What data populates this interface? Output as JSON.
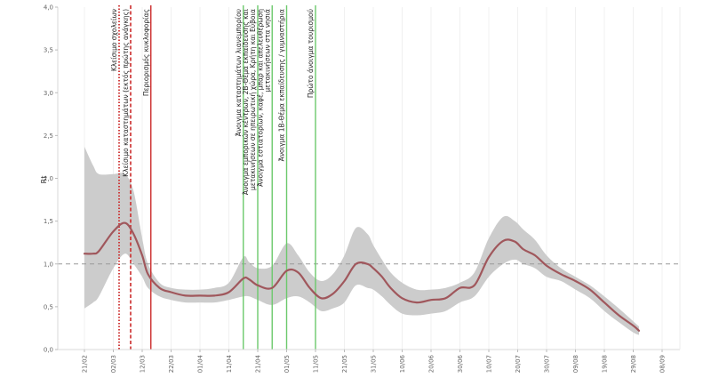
{
  "chart_data": {
    "type": "line",
    "title": "",
    "xlabel": "",
    "ylabel": "Rt",
    "x_ticks": [
      "21/02",
      "02/03",
      "12/03",
      "22/03",
      "01/04",
      "11/04",
      "21/04",
      "01/05",
      "11/05",
      "21/05",
      "31/05",
      "10/06",
      "20/06",
      "30/06",
      "10/07",
      "20/07",
      "30/07",
      "09/08",
      "19/08",
      "29/08",
      "08/09"
    ],
    "y_ticks": [
      "0,0",
      "0,5",
      "1,0",
      "1,5",
      "2,0",
      "2,5",
      "3,0",
      "3,5",
      "4,0"
    ],
    "ylim": [
      0,
      4
    ],
    "reference_line": 1.0,
    "series": [
      {
        "color": "#a0575c",
        "x": [
          0,
          3,
          5,
          10,
          14,
          17,
          20,
          22,
          26,
          30,
          35,
          40,
          45,
          50,
          55,
          57,
          60,
          65,
          70,
          74,
          78,
          82,
          86,
          90,
          94,
          98,
          100,
          103,
          106,
          110,
          115,
          120,
          125,
          130,
          135,
          140,
          145,
          149,
          152,
          156,
          160,
          165,
          170,
          175,
          180,
          185,
          190,
          192
        ],
        "y": [
          1.12,
          1.12,
          1.15,
          1.38,
          1.48,
          1.35,
          1.1,
          0.88,
          0.72,
          0.67,
          0.63,
          0.63,
          0.63,
          0.67,
          0.83,
          0.82,
          0.75,
          0.72,
          0.92,
          0.9,
          0.72,
          0.6,
          0.65,
          0.8,
          1.0,
          1.0,
          0.95,
          0.85,
          0.72,
          0.6,
          0.55,
          0.58,
          0.6,
          0.72,
          0.75,
          1.08,
          1.27,
          1.26,
          1.17,
          1.1,
          0.98,
          0.88,
          0.8,
          0.7,
          0.55,
          0.4,
          0.28,
          0.22
        ]
      },
      {
        "color": "#cccccc",
        "x": [
          0,
          3,
          5,
          10,
          14,
          17,
          20,
          22,
          26,
          30,
          35,
          40,
          45,
          50,
          55,
          57,
          60,
          65,
          70,
          74,
          78,
          82,
          86,
          90,
          94,
          98,
          100,
          103,
          106,
          110,
          115,
          120,
          125,
          130,
          135,
          140,
          145,
          149,
          152,
          156,
          160,
          165,
          170,
          175,
          180,
          185,
          190,
          192
        ],
        "y_upper": [
          2.37,
          2.15,
          2.05,
          2.05,
          2.05,
          1.85,
          1.3,
          1.0,
          0.78,
          0.72,
          0.7,
          0.7,
          0.72,
          0.78,
          1.08,
          1.02,
          0.95,
          0.98,
          1.24,
          1.1,
          0.9,
          0.8,
          0.88,
          1.1,
          1.42,
          1.35,
          1.22,
          1.05,
          0.9,
          0.78,
          0.7,
          0.7,
          0.72,
          0.78,
          0.9,
          1.3,
          1.55,
          1.5,
          1.4,
          1.28,
          1.1,
          0.95,
          0.85,
          0.75,
          0.62,
          0.48,
          0.33,
          0.27
        ],
        "y_lower": [
          0.48,
          0.55,
          0.62,
          0.95,
          1.12,
          1.0,
          0.85,
          0.72,
          0.62,
          0.58,
          0.55,
          0.55,
          0.55,
          0.58,
          0.62,
          0.62,
          0.58,
          0.52,
          0.6,
          0.62,
          0.55,
          0.45,
          0.48,
          0.55,
          0.75,
          0.72,
          0.7,
          0.62,
          0.52,
          0.42,
          0.4,
          0.42,
          0.45,
          0.55,
          0.62,
          0.85,
          1.0,
          1.05,
          1.0,
          0.95,
          0.85,
          0.8,
          0.7,
          0.6,
          0.45,
          0.32,
          0.2,
          0.17
        ]
      }
    ],
    "annotations": [
      {
        "label": "Κλείσιμο σχολείων",
        "x": 12,
        "color": "#cc2b2b",
        "dash": "dotted"
      },
      {
        "label": "Κλείσιμο καταστημάτων (εκτός πρώτης ανάγκης)",
        "x": 16,
        "color": "#cc2b2b",
        "dash": "dashed"
      },
      {
        "label": "Περιορισμός κυκλοφορίας",
        "x": 23,
        "color": "#cc2b2b",
        "dash": "solid"
      },
      {
        "label": "Άνοιγμα καταστημάτων λιανεμπορίου",
        "x": 55,
        "color": "#6cc96c",
        "dash": "solid"
      },
      {
        "label": "Άνοιγμα εμπορικών κέντρων, 2Β-Θέμα εκπαίδευσης και μετακινήσεων σε ηπειρωτική χώρα, Κρήτη και Εύβοια",
        "x": 60,
        "color": "#6cc96c",
        "dash": "solid"
      },
      {
        "label": "Άνοιγμα εστιατορίων, καφέ, μπαρ και απελευθέρωση μετακινήσεων στα νησιά",
        "x": 65,
        "color": "#6cc96c",
        "dash": "solid"
      },
      {
        "label": "Άνοιγμα 1Β-Θέμα εκπαίδευσης / γυμναστήρια",
        "x": 70,
        "color": "#6cc96c",
        "dash": "solid"
      },
      {
        "label": "Πρώτο άνοιγμα τουρισμού",
        "x": 80,
        "color": "#6cc96c",
        "dash": "solid"
      }
    ]
  }
}
